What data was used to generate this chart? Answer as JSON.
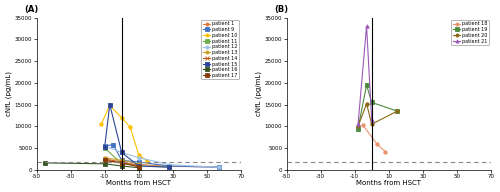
{
  "panel_A": {
    "patients": [
      {
        "id": "patient 1",
        "color": "#E07840",
        "marker": "o",
        "data": [
          [
            -10,
            2200
          ],
          [
            0,
            1500
          ],
          [
            28,
            800
          ],
          [
            57,
            700
          ]
        ]
      },
      {
        "id": "patient 9",
        "color": "#4472C4",
        "marker": "s",
        "data": [
          [
            -10,
            5500
          ],
          [
            -5,
            5800
          ],
          [
            0,
            2200
          ],
          [
            10,
            1800
          ],
          [
            28,
            900
          ],
          [
            57,
            600
          ]
        ]
      },
      {
        "id": "patient 10",
        "color": "#FFC000",
        "marker": "o",
        "data": [
          [
            -12,
            10500
          ],
          [
            -7,
            14800
          ],
          [
            0,
            12000
          ],
          [
            5,
            9800
          ],
          [
            10,
            3500
          ],
          [
            15,
            2000
          ]
        ]
      },
      {
        "id": "patient 11",
        "color": "#70AD47",
        "marker": "s",
        "data": [
          [
            -10,
            5000
          ],
          [
            0,
            1500
          ],
          [
            10,
            900
          ],
          [
            28,
            700
          ]
        ]
      },
      {
        "id": "patient 12",
        "color": "#9DC3E6",
        "marker": "o",
        "data": [
          [
            -10,
            5500
          ],
          [
            0,
            4000
          ],
          [
            10,
            2800
          ],
          [
            28,
            1200
          ],
          [
            57,
            600
          ]
        ]
      },
      {
        "id": "patient 13",
        "color": "#C9A227",
        "marker": "o",
        "data": [
          [
            -10,
            2800
          ],
          [
            0,
            2200
          ],
          [
            10,
            1400
          ]
        ]
      },
      {
        "id": "patient 14",
        "color": "#C55A11",
        "marker": "x",
        "data": [
          [
            -10,
            2500
          ],
          [
            0,
            1800
          ],
          [
            10,
            900
          ]
        ]
      },
      {
        "id": "patient 15",
        "color": "#2E4699",
        "marker": "s",
        "data": [
          [
            -10,
            5200
          ],
          [
            -7,
            15000
          ],
          [
            0,
            4000
          ],
          [
            10,
            900
          ],
          [
            28,
            600
          ]
        ]
      },
      {
        "id": "patient 16",
        "color": "#375623",
        "marker": "s",
        "data": [
          [
            -45,
            1600
          ],
          [
            -10,
            1400
          ],
          [
            0,
            900
          ],
          [
            10,
            500
          ]
        ]
      },
      {
        "id": "patient 17",
        "color": "#843C0C",
        "marker": "s",
        "data": [
          [
            -10,
            2200
          ],
          [
            0,
            1600
          ],
          [
            10,
            700
          ]
        ]
      }
    ],
    "dashed_line_y": 1700,
    "xlim": [
      -50,
      70
    ],
    "ylim": [
      0,
      35000
    ],
    "yticks": [
      0,
      5000,
      10000,
      15000,
      20000,
      25000,
      30000,
      35000
    ],
    "xlabel": "Months from HSCT",
    "ylabel": "cNfL (pg/mL)",
    "vline_x": 0,
    "title": "(A)"
  },
  "panel_B": {
    "patients": [
      {
        "id": "patient 18",
        "color": "#E8956D",
        "marker": "o",
        "data": [
          [
            -5,
            10200
          ],
          [
            3,
            6000
          ],
          [
            8,
            4200
          ]
        ]
      },
      {
        "id": "patient 19",
        "color": "#4E8B3F",
        "marker": "s",
        "data": [
          [
            -8,
            9500
          ],
          [
            -3,
            19500
          ],
          [
            0,
            15500
          ],
          [
            15,
            13500
          ]
        ]
      },
      {
        "id": "patient 20",
        "color": "#8B6914",
        "marker": "o",
        "data": [
          [
            -8,
            10000
          ],
          [
            -3,
            15200
          ],
          [
            0,
            10500
          ],
          [
            15,
            13500
          ]
        ]
      },
      {
        "id": "patient 21",
        "color": "#9B59B6",
        "marker": "^",
        "data": [
          [
            -8,
            10500
          ],
          [
            -3,
            33000
          ],
          [
            0,
            11500
          ]
        ]
      }
    ],
    "dashed_line_y": 1700,
    "xlim": [
      -50,
      70
    ],
    "ylim": [
      0,
      35000
    ],
    "yticks": [
      0,
      5000,
      10000,
      15000,
      20000,
      25000,
      30000,
      35000
    ],
    "xlabel": "Months from HSCT",
    "ylabel": "cNfL (pg/mL)",
    "vline_x": 0,
    "title": "(B)"
  }
}
